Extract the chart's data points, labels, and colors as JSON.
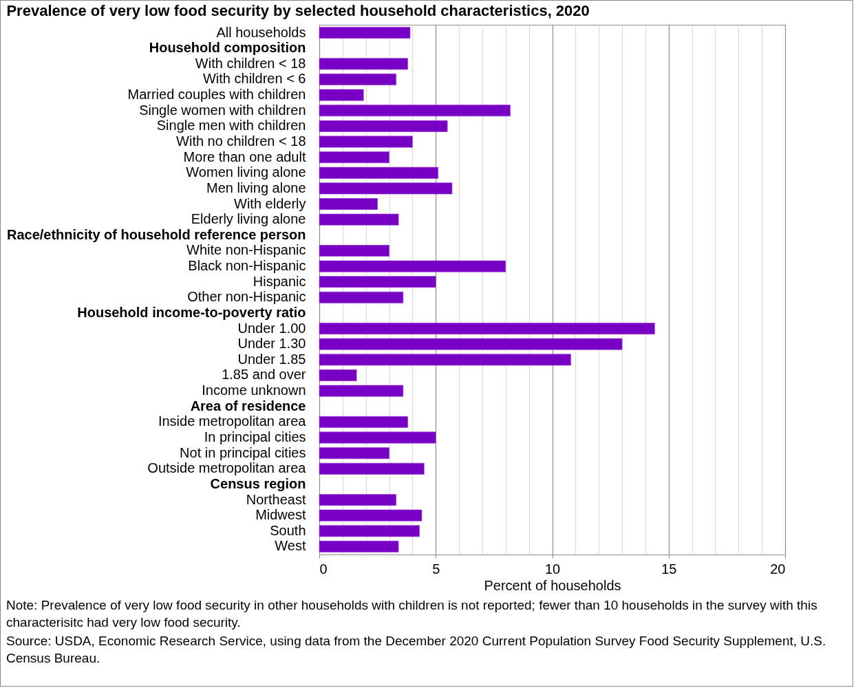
{
  "chart_data": {
    "type": "bar",
    "orientation": "horizontal",
    "title": "Prevalence of very low food security by selected household characteristics, 2020",
    "xlabel": "Percent of households",
    "categories": [
      "All households",
      "Household composition",
      "With children < 18",
      "With children < 6",
      "Married couples with children",
      "Single women with children",
      "Single men with children",
      "With no children < 18",
      "More than one adult",
      "Women living alone",
      "Men living alone",
      "With elderly",
      "Elderly living alone",
      "Race/ethnicity of household reference person",
      "White non-Hispanic",
      "Black non-Hispanic",
      "Hispanic",
      "Other non-Hispanic",
      "Household income-to-poverty ratio",
      "Under 1.00",
      "Under 1.30",
      "Under 1.85",
      "1.85 and over",
      "Income unknown",
      "Area of residence",
      "Inside metropolitan area",
      "In principal cities",
      "Not in principal cities",
      "Outside metropolitan area",
      "Census region",
      "Northeast",
      "Midwest",
      "South",
      "West"
    ],
    "values": [
      3.9,
      null,
      3.8,
      3.3,
      1.9,
      8.2,
      5.5,
      4.0,
      3.0,
      5.1,
      5.7,
      2.5,
      3.4,
      null,
      3.0,
      8.0,
      5.0,
      3.6,
      null,
      14.4,
      13.0,
      10.8,
      1.6,
      3.6,
      null,
      3.8,
      5.0,
      3.0,
      4.5,
      null,
      3.3,
      4.4,
      4.3,
      3.4
    ],
    "color": "#7800c4",
    "xlim": [
      0,
      20
    ],
    "xticks": [
      0,
      {
        "value": 1,
        "label": null
      },
      {
        "value": 2,
        "label": null
      },
      {
        "value": 3,
        "label": null
      },
      {
        "value": 4,
        "label": null
      },
      5,
      {
        "value": 6,
        "label": null
      },
      {
        "value": 7,
        "label": null
      },
      {
        "value": 8,
        "label": null
      },
      {
        "value": 9,
        "label": null
      },
      10,
      {
        "value": 11,
        "label": null
      },
      {
        "value": 12,
        "label": null
      },
      {
        "value": 13,
        "label": null
      },
      {
        "value": 14,
        "label": null
      },
      15,
      {
        "value": 16,
        "label": null
      },
      {
        "value": 17,
        "label": null
      },
      {
        "value": 18,
        "label": null
      },
      {
        "value": 19,
        "label": null
      },
      20
    ],
    "grid": "x",
    "annotations": [
      "Note: Prevalence of very low food security in other households with children is not reported; fewer than 10 households in the survey with this characterisitc had very low food security.",
      "Source: USDA, Economic Research Service, using data from the December 2020 Current Population Survey Food Security Supplement, U.S. Census Bureau."
    ]
  }
}
